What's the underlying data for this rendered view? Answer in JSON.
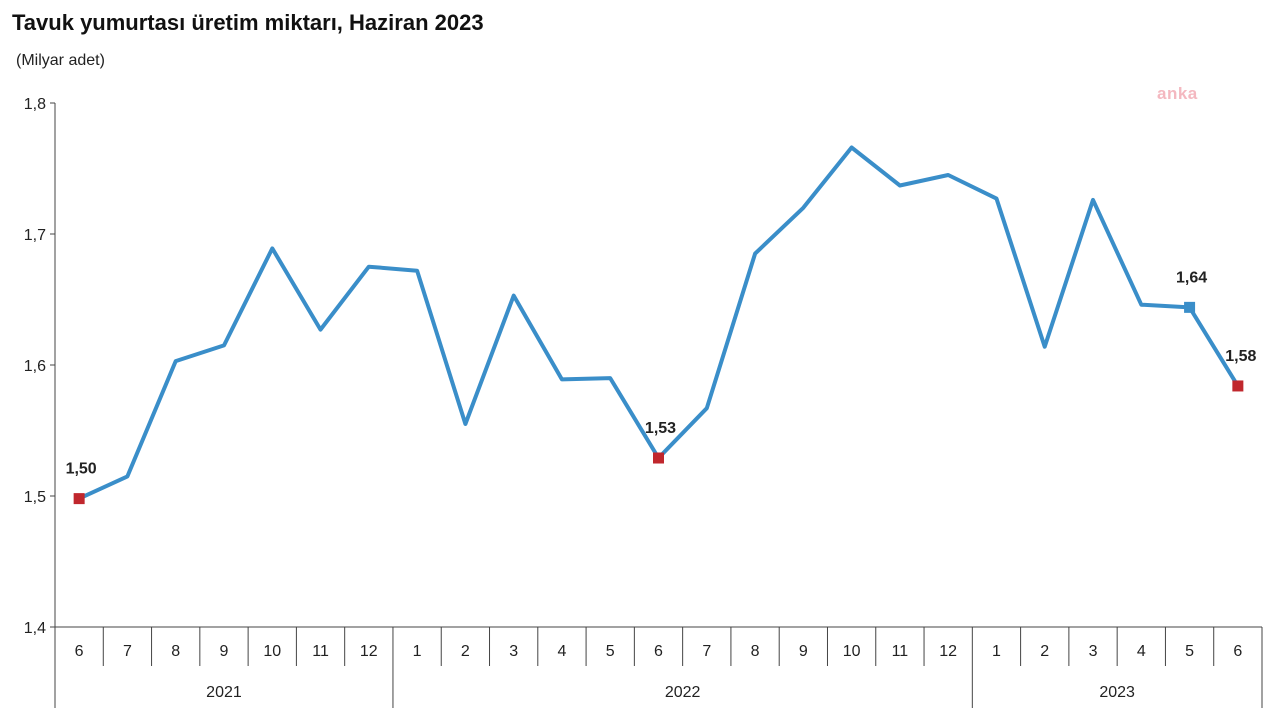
{
  "chart_data": {
    "type": "line",
    "title": "Tavuk yumurtası üretim miktarı, Haziran 2023",
    "ylabel": "(Milyar adet)",
    "watermark": "anka",
    "ylim": [
      1.4,
      1.8
    ],
    "y_ticks": [
      "1,4",
      "1,5",
      "1,6",
      "1,7",
      "1,8"
    ],
    "y_tick_values": [
      1.4,
      1.5,
      1.6,
      1.7,
      1.8
    ],
    "grid": false,
    "x": [
      "6",
      "7",
      "8",
      "9",
      "10",
      "11",
      "12",
      "1",
      "2",
      "3",
      "4",
      "5",
      "6",
      "7",
      "8",
      "9",
      "10",
      "11",
      "12",
      "1",
      "2",
      "3",
      "4",
      "5",
      "6"
    ],
    "years": [
      {
        "label": "2021",
        "count": 7
      },
      {
        "label": "2022",
        "count": 12
      },
      {
        "label": "2023",
        "count": 6
      }
    ],
    "series": [
      {
        "color": "#3a8ec9",
        "values": [
          1.498,
          1.515,
          1.603,
          1.615,
          1.689,
          1.627,
          1.675,
          1.672,
          1.555,
          1.653,
          1.589,
          1.59,
          1.529,
          1.567,
          1.685,
          1.72,
          1.766,
          1.737,
          1.745,
          1.727,
          1.614,
          1.726,
          1.646,
          1.644,
          1.584
        ]
      }
    ],
    "annotations": [
      {
        "index": 0,
        "text": "1,50",
        "marker_color": "#c0272d"
      },
      {
        "index": 12,
        "text": "1,53",
        "marker_color": "#c0272d"
      },
      {
        "index": 23,
        "text": "1,64",
        "marker_color": "#3a8ec9"
      },
      {
        "index": 24,
        "text": "1,58",
        "marker_color": "#c0272d"
      }
    ]
  }
}
